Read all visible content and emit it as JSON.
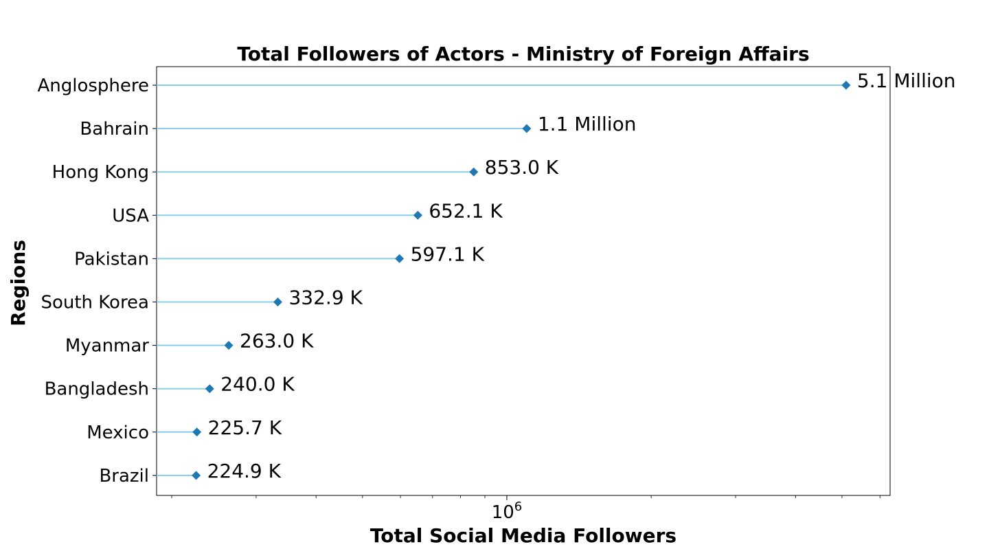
{
  "chart_data": {
    "type": "lollipop",
    "orientation": "horizontal",
    "title": "Total Followers of Actors - Ministry of Foreign Affairs",
    "xlabel": "Total Social Media Followers",
    "ylabel": "Regions",
    "x_scale": "log",
    "xlim": [
      186000,
      6300000
    ],
    "x_major_ticks": [
      {
        "value": 1000000,
        "label_base": "10",
        "label_exp": "6"
      }
    ],
    "x_minor_ticks": [
      200000,
      300000,
      400000,
      500000,
      600000,
      700000,
      800000,
      900000,
      2000000,
      3000000,
      4000000,
      5000000,
      6000000
    ],
    "grid": false,
    "marker": "diamond",
    "colors": {
      "stem": "#87ceeb",
      "marker": "#1f77b4",
      "text": "#000000"
    },
    "categories": [
      "Anglosphere",
      "Bahrain",
      "Hong Kong",
      "USA",
      "Pakistan",
      "South Korea",
      "Myanmar",
      "Bangladesh",
      "Mexico",
      "Brazil"
    ],
    "values": [
      5100000,
      1100000,
      853000,
      652100,
      597100,
      332900,
      263000,
      240000,
      225700,
      224900
    ],
    "data_labels": [
      "5.1 Million",
      "1.1 Million",
      "853.0 K",
      "652.1 K",
      "597.1 K",
      "332.9 K",
      "263.0 K",
      "240.0 K",
      "225.7 K",
      "224.9 K"
    ]
  }
}
